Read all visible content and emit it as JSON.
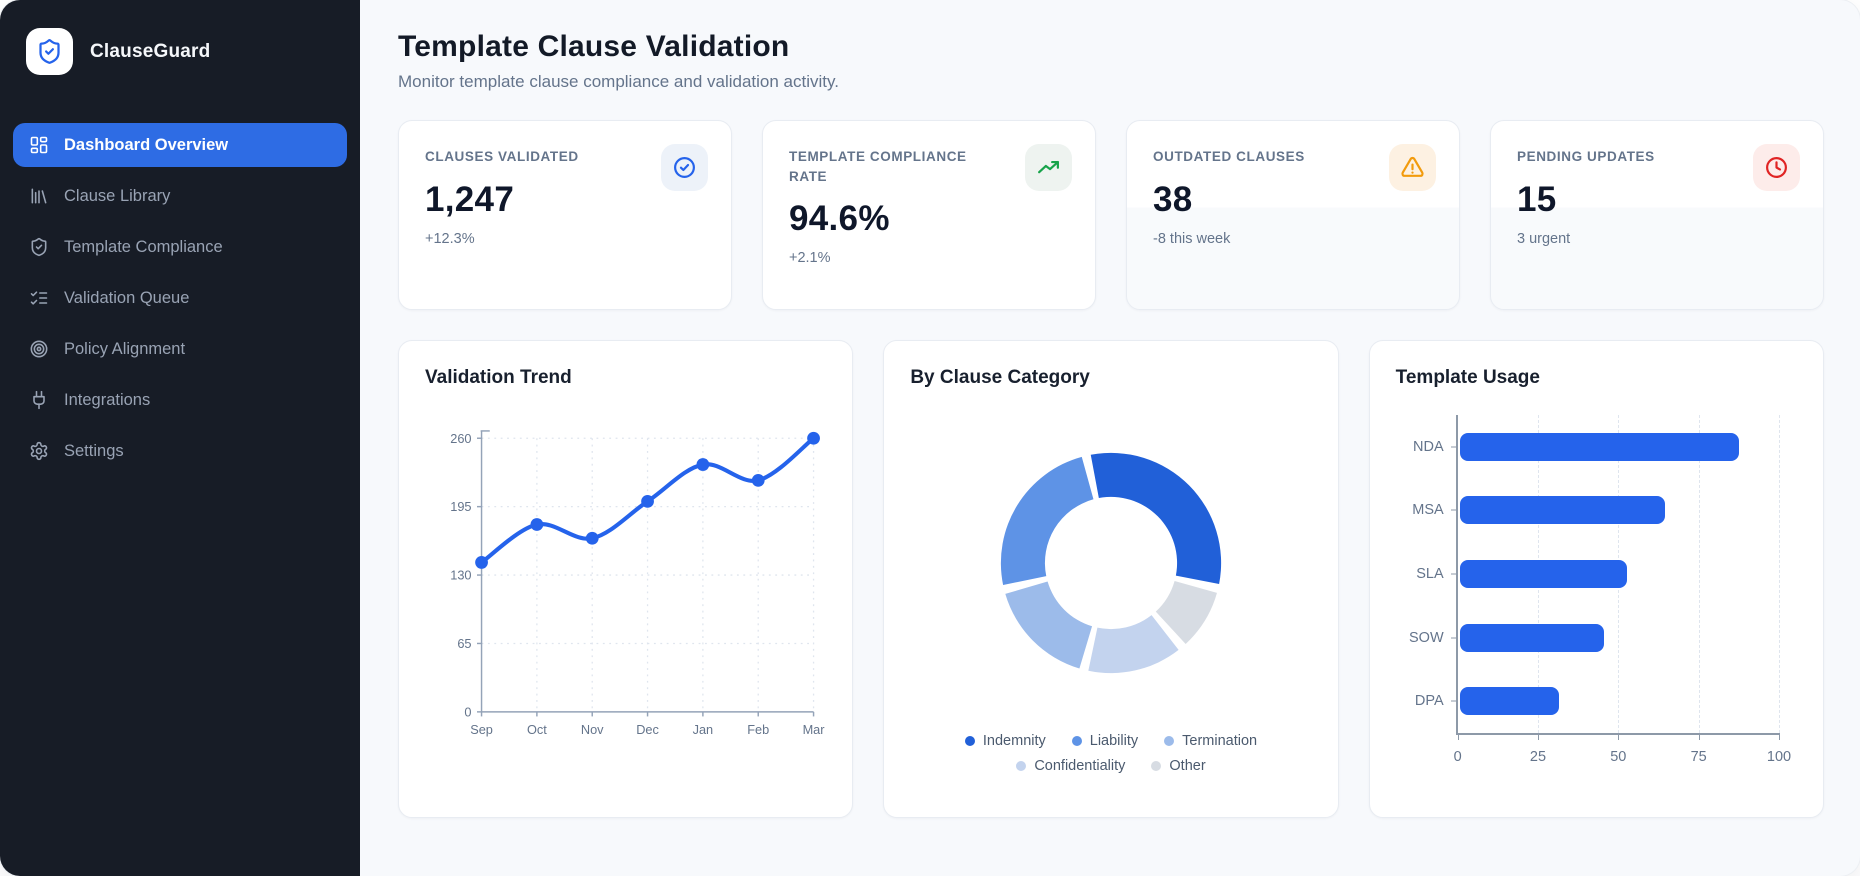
{
  "app": {
    "name": "ClauseGuard"
  },
  "sidebar": {
    "items": [
      {
        "label": "Dashboard Overview",
        "icon": "dashboard-grid-icon",
        "active": true
      },
      {
        "label": "Clause Library",
        "icon": "library-icon",
        "active": false
      },
      {
        "label": "Template Compliance",
        "icon": "shield-check-icon",
        "active": false
      },
      {
        "label": "Validation Queue",
        "icon": "list-checks-icon",
        "active": false
      },
      {
        "label": "Policy Alignment",
        "icon": "target-icon",
        "active": false
      },
      {
        "label": "Integrations",
        "icon": "plug-icon",
        "active": false
      },
      {
        "label": "Settings",
        "icon": "gear-icon",
        "active": false
      }
    ]
  },
  "header": {
    "title": "Template Clause Validation",
    "subtitle": "Monitor template clause compliance and validation activity."
  },
  "stats": [
    {
      "label": "CLAUSES VALIDATED",
      "value": "1,247",
      "delta": "+12.3%",
      "icon": "circle-check-icon",
      "icon_color": "#2563eb",
      "chip_bg": "#edf2f9"
    },
    {
      "label": "TEMPLATE COMPLIANCE RATE",
      "value": "94.6%",
      "delta": "+2.1%",
      "icon": "trending-up-icon",
      "icon_color": "#17a34a",
      "chip_bg": "#eef3f0"
    },
    {
      "label": "OUTDATED CLAUSES",
      "value": "38",
      "delta": "-8 this week",
      "icon": "alert-triangle-icon",
      "icon_color": "#f29b0d",
      "chip_bg": "#fdf1e2"
    },
    {
      "label": "PENDING UPDATES",
      "value": "15",
      "delta": "3 urgent",
      "icon": "clock-icon",
      "icon_color": "#e02424",
      "chip_bg": "#fdecea"
    }
  ],
  "chart_data": [
    {
      "type": "line",
      "title": "Validation Trend",
      "categories": [
        "Sep",
        "Oct",
        "Nov",
        "Dec",
        "Jan",
        "Feb",
        "Mar"
      ],
      "values": [
        142,
        178,
        165,
        200,
        235,
        220,
        260
      ],
      "yticks": [
        0,
        65,
        130,
        195,
        260
      ],
      "ylim": [
        0,
        260
      ],
      "xlabel": "",
      "ylabel": "",
      "grid": true,
      "color": "#2563eb",
      "legend_position": "none"
    },
    {
      "type": "pie",
      "style": "donut",
      "title": "By Clause Category",
      "segments": [
        {
          "name": "Indemnity",
          "value": 32,
          "color": "#2160d8"
        },
        {
          "name": "Liability",
          "value": 25,
          "color": "#5e93e6"
        },
        {
          "name": "Termination",
          "value": 17,
          "color": "#9cbbea"
        },
        {
          "name": "Confidentiality",
          "value": 15,
          "color": "#c3d3ee"
        },
        {
          "name": "Other",
          "value": 10,
          "color": "#d7dce3"
        }
      ],
      "draw_order": [
        0,
        4,
        3,
        2,
        1
      ],
      "start_angle": -13,
      "legend_position": "bottom",
      "legend_rows": [
        3,
        2
      ]
    },
    {
      "type": "bar",
      "orientation": "horizontal",
      "title": "Template Usage",
      "categories": [
        "NDA",
        "MSA",
        "SLA",
        "SOW",
        "DPA"
      ],
      "values": [
        87,
        64,
        52,
        45,
        31
      ],
      "xticks": [
        0,
        25,
        50,
        75,
        100
      ],
      "xlim": [
        0,
        100
      ],
      "grid": true,
      "color": "#2563eb",
      "legend_position": "none"
    }
  ]
}
